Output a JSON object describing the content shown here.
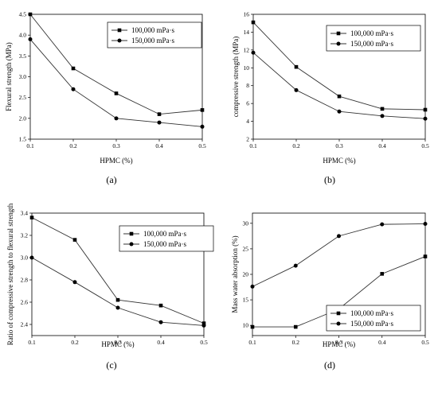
{
  "chart_data": [
    {
      "type": "line",
      "panel_label": "(a)",
      "xlabel": "HPMC (%)",
      "ylabel": "Flexural strength (MPa)",
      "x": [
        0.1,
        0.2,
        0.3,
        0.4,
        0.5
      ],
      "xlim": [
        0.1,
        0.5
      ],
      "ylim": [
        1.5,
        4.5
      ],
      "xticks": [
        "0.1",
        "0.2",
        "0.3",
        "0.4",
        "0.5"
      ],
      "yticks": [
        "1.5",
        "2.0",
        "2.5",
        "3.0",
        "3.5",
        "4.0",
        "4.5"
      ],
      "legend_position": "top-right",
      "series": [
        {
          "name": "100,000 mPa·s",
          "marker": "square",
          "values": [
            4.5,
            3.2,
            2.6,
            2.1,
            2.2
          ]
        },
        {
          "name": "150,000 mPa·s",
          "marker": "circle",
          "values": [
            3.9,
            2.7,
            2.0,
            1.9,
            1.8
          ]
        }
      ]
    },
    {
      "type": "line",
      "panel_label": "(b)",
      "xlabel": "HPMC (%)",
      "ylabel": "compressive strength (MPa)",
      "x": [
        0.1,
        0.2,
        0.3,
        0.4,
        0.5
      ],
      "xlim": [
        0.1,
        0.5
      ],
      "ylim": [
        2,
        16
      ],
      "xticks": [
        "0.1",
        "0.2",
        "0.3",
        "0.4",
        "0.5"
      ],
      "yticks": [
        "2",
        "4",
        "6",
        "8",
        "10",
        "12",
        "14",
        "16"
      ],
      "legend_position": "top-right",
      "series": [
        {
          "name": "100,000 mPa·s",
          "marker": "square",
          "values": [
            15.1,
            10.1,
            6.8,
            5.4,
            5.3
          ]
        },
        {
          "name": "150,000 mPa·s",
          "marker": "circle",
          "values": [
            11.7,
            7.5,
            5.1,
            4.6,
            4.3
          ]
        }
      ]
    },
    {
      "type": "line",
      "panel_label": "(c)",
      "xlabel": "HPMC (%)",
      "ylabel": "Ratio of compressive strength to flexural strength",
      "x": [
        0.1,
        0.2,
        0.3,
        0.4,
        0.5
      ],
      "xlim": [
        0.1,
        0.5
      ],
      "ylim": [
        2.3,
        3.4
      ],
      "xticks": [
        "0.1",
        "0.2",
        "0.3",
        "0.4",
        "0.5"
      ],
      "yticks": [
        "2.4",
        "2.6",
        "2.8",
        "3.0",
        "3.2",
        "3.4"
      ],
      "legend_position": "top-right",
      "series": [
        {
          "name": "100,000 mPa·s",
          "marker": "square",
          "values": [
            3.36,
            3.16,
            2.62,
            2.57,
            2.41
          ]
        },
        {
          "name": "150,000 mPa·s",
          "marker": "circle",
          "values": [
            3.0,
            2.78,
            2.55,
            2.42,
            2.39
          ]
        }
      ]
    },
    {
      "type": "line",
      "panel_label": "(d)",
      "xlabel": "HPMC (%)",
      "ylabel": "Mass water absorption (%)",
      "x": [
        0.1,
        0.2,
        0.3,
        0.4,
        0.5
      ],
      "xlim": [
        0.1,
        0.5
      ],
      "ylim": [
        8,
        32
      ],
      "xticks": [
        "0.1",
        "0.2",
        "0.3",
        "0.4",
        "0.5"
      ],
      "yticks": [
        "10",
        "15",
        "20",
        "25",
        "30"
      ],
      "legend_position": "bottom-right",
      "series": [
        {
          "name": "100,000 mPa·s",
          "marker": "square",
          "values": [
            9.7,
            9.7,
            13.2,
            20.1,
            23.5
          ]
        },
        {
          "name": "150,000 mPa·s",
          "marker": "circle",
          "values": [
            17.6,
            21.7,
            27.5,
            29.8,
            29.9
          ]
        }
      ]
    }
  ]
}
